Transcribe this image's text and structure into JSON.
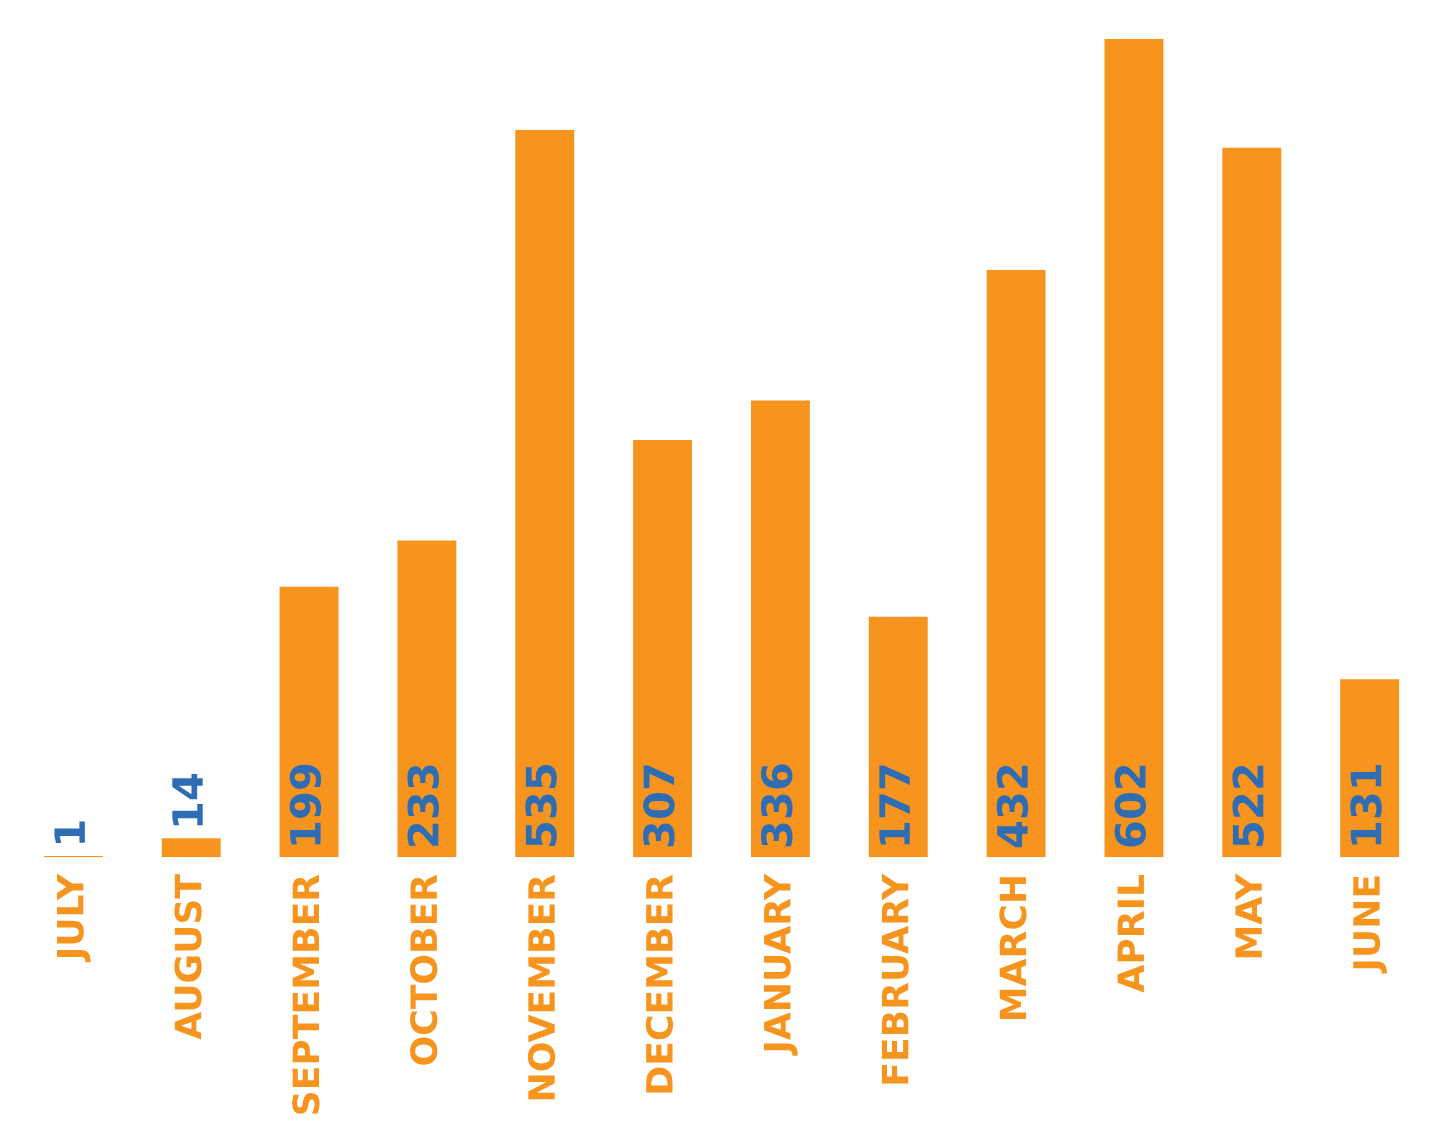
{
  "chart_data": {
    "type": "bar",
    "categories": [
      "JULY",
      "AUGUST",
      "SEPTEMBER",
      "OCTOBER",
      "NOVEMBER",
      "DECEMBER",
      "JANUARY",
      "FEBRUARY",
      "MARCH",
      "APRIL",
      "MAY",
      "JUNE"
    ],
    "values": [
      1,
      14,
      199,
      233,
      535,
      307,
      336,
      177,
      432,
      602,
      522,
      131
    ],
    "color": "#f7941d",
    "data_labels": true,
    "grid": false,
    "legend": false
  }
}
